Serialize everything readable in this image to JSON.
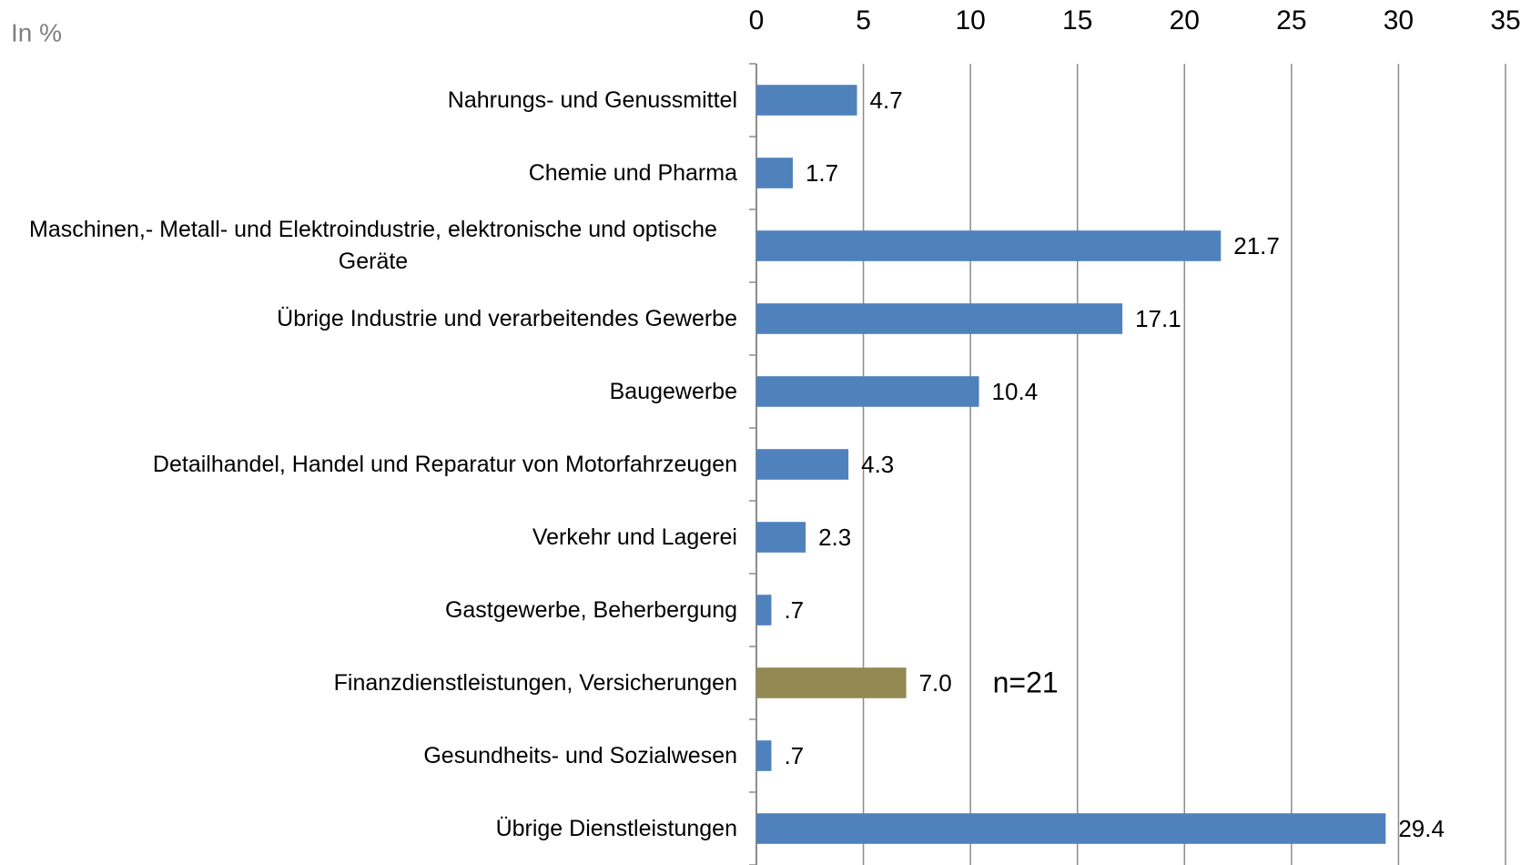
{
  "chart_data": {
    "type": "bar",
    "orientation": "horizontal",
    "unit_label": "In %",
    "annotation": "n=21",
    "categories": [
      "Nahrungs- und Genussmittel",
      "Chemie und Pharma",
      "Maschinen,- Metall- und Elektroindustrie, elektronische und optische Geräte",
      "Übrige Industrie und verarbeitendes Gewerbe",
      "Baugewerbe",
      "Detailhandel, Handel und Reparatur von Motorfahrzeugen",
      "Verkehr und Lagerei",
      "Gastgewerbe, Beherbergung",
      "Finanzdienstleistungen, Versicherungen",
      "Gesundheits- und Sozialwesen",
      "Übrige Dienstleistungen"
    ],
    "values": [
      4.7,
      1.7,
      21.7,
      17.1,
      10.4,
      4.3,
      2.3,
      0.7,
      7.0,
      0.7,
      29.4
    ],
    "value_labels": [
      "4.7",
      "1.7",
      "21.7",
      "17.1",
      "10.4",
      "4.3",
      "2.3",
      ".7",
      "7.0",
      ".7",
      "29.4"
    ],
    "colors": [
      "#4f81bd",
      "#4f81bd",
      "#4f81bd",
      "#4f81bd",
      "#4f81bd",
      "#4f81bd",
      "#4f81bd",
      "#4f81bd",
      "#938953",
      "#4f81bd",
      "#4f81bd"
    ],
    "xlim": [
      0,
      35
    ],
    "xticks": [
      0,
      5,
      10,
      15,
      20,
      25,
      30,
      35
    ],
    "grid": true
  }
}
